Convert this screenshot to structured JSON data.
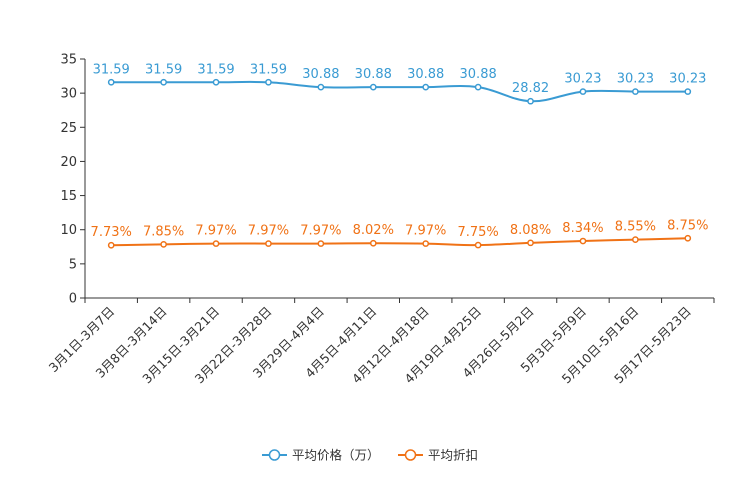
{
  "chart_data": {
    "type": "line",
    "categories": [
      "3月1日-3月7日",
      "3月8日-3月14日",
      "3月15日-3月21日",
      "3月22日-3月28日",
      "3月29日-4月4日",
      "4月5日-4月11日",
      "4月12日-4月18日",
      "4月19日-4月25日",
      "4月26日-5月2日",
      "5月3日-5月9日",
      "5月10日-5月16日",
      "5月17日-5月23日"
    ],
    "ylim": [
      0,
      35
    ],
    "yticks": [
      0,
      5,
      10,
      15,
      20,
      25,
      30,
      35
    ],
    "series": [
      {
        "name": "平均价格（万）",
        "color": "#3a9bd3",
        "values": [
          31.59,
          31.59,
          31.59,
          31.59,
          30.88,
          30.88,
          30.88,
          30.88,
          28.82,
          30.23,
          30.23,
          30.23
        ],
        "labels": [
          "31.59",
          "31.59",
          "31.59",
          "31.59",
          "30.88",
          "30.88",
          "30.88",
          "30.88",
          "28.82",
          "30.23",
          "30.23",
          "30.23"
        ]
      },
      {
        "name": "平均折扣",
        "color": "#f07216",
        "values": [
          7.73,
          7.85,
          7.97,
          7.97,
          7.97,
          8.02,
          7.97,
          7.75,
          8.08,
          8.34,
          8.55,
          8.75
        ],
        "labels": [
          "7.73%",
          "7.85%",
          "7.97%",
          "7.97%",
          "7.97%",
          "8.02%",
          "7.97%",
          "7.75%",
          "8.08%",
          "8.34%",
          "8.55%",
          "8.75%"
        ]
      }
    ],
    "legend": "bottom-center"
  }
}
